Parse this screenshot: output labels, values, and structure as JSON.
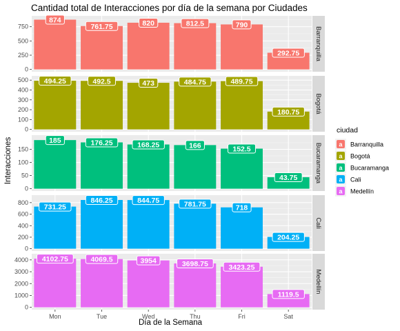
{
  "chart_data": {
    "type": "bar",
    "title": "Cantidad total de Interacciones por día de la semana por Ciudades",
    "xlabel": "Día de la Semana",
    "ylabel": "Interacciones",
    "categories": [
      "Mon",
      "Tue",
      "Wed",
      "Thu",
      "Fri",
      "Sat"
    ],
    "facets": "rows by ciudad, free y scales",
    "legend": {
      "title": "ciudad",
      "position": "right",
      "key_glyph": "a"
    },
    "grid": true,
    "series": [
      {
        "name": "Barranquilla",
        "color": "#F8766D",
        "values": [
          874,
          761.75,
          820,
          812.5,
          790,
          292.75
        ],
        "labels": [
          "874",
          "761.75",
          "820",
          "812.5",
          "790",
          "292.75"
        ],
        "ylim": [
          0,
          900
        ],
        "yticks": [
          0,
          250,
          500,
          750
        ]
      },
      {
        "name": "Bogotá",
        "color": "#A3A500",
        "values": [
          494.25,
          492.5,
          473,
          484.75,
          489.75,
          180.75
        ],
        "labels": [
          "494.25",
          "492.5",
          "473",
          "484.75",
          "489.75",
          "180.75"
        ],
        "ylim": [
          0,
          520
        ],
        "yticks": [
          0,
          100,
          200,
          300,
          400,
          500
        ]
      },
      {
        "name": "Bucaramanga",
        "color": "#00BF7D",
        "values": [
          185,
          176.25,
          168.25,
          166,
          152.5,
          43.75
        ],
        "labels": [
          "185",
          "176.25",
          "168.25",
          "166",
          "152.5",
          "43.75"
        ],
        "ylim": [
          0,
          195
        ],
        "yticks": [
          0,
          50,
          100,
          150
        ]
      },
      {
        "name": "Cali",
        "color": "#00B0F6",
        "values": [
          731.25,
          846.25,
          844.75,
          781.75,
          718,
          204.25
        ],
        "labels": [
          "731.25",
          "846.25",
          "844.75",
          "781.75",
          "718",
          "204.25"
        ],
        "ylim": [
          0,
          890
        ],
        "yticks": [
          0,
          200,
          400,
          600,
          800
        ]
      },
      {
        "name": "Medellín",
        "color": "#E76BF3",
        "values": [
          4102.75,
          4069.5,
          3954,
          3698.75,
          3423.25,
          1119.5
        ],
        "labels": [
          "4102.75",
          "4069.5",
          "3954",
          "3698.75",
          "3423.25",
          "1119.5"
        ],
        "ylim": [
          0,
          4320
        ],
        "yticks": [
          0,
          1000,
          2000,
          3000,
          4000
        ]
      }
    ]
  }
}
